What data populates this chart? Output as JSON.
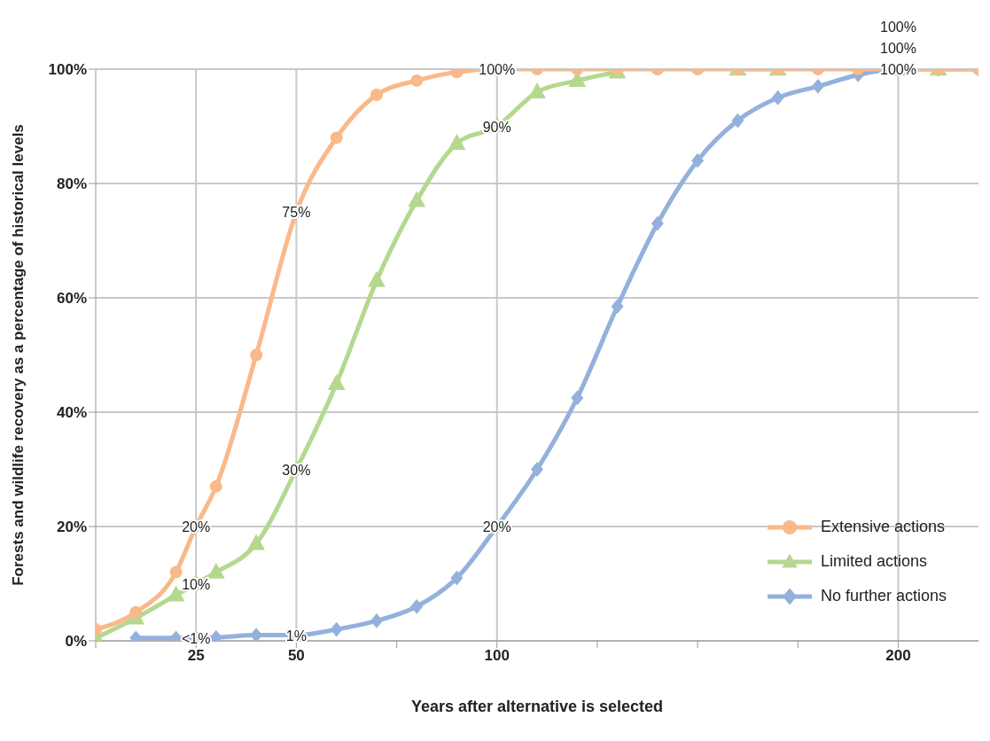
{
  "chart_data": {
    "type": "line",
    "xlabel": "Years after alternative is selected",
    "ylabel": "Forests and wildlife recovery as a percentage of historical levels",
    "x": [
      0,
      10,
      20,
      25,
      30,
      40,
      50,
      60,
      70,
      80,
      90,
      100,
      110,
      120,
      130,
      140,
      150,
      160,
      170,
      180,
      190,
      200,
      210,
      220
    ],
    "series": [
      {
        "name": "Extensive actions",
        "color": "#f9b98a",
        "marker": "circle",
        "values": [
          2,
          5,
          12,
          20,
          27,
          50,
          75,
          88,
          95.5,
          98,
          99.5,
          100,
          100,
          100,
          100,
          100,
          100,
          100,
          100,
          100,
          100,
          100,
          100,
          100
        ],
        "value_labels": [
          null,
          null,
          null,
          "20%",
          null,
          null,
          "75%",
          null,
          null,
          null,
          null,
          "100%",
          null,
          null,
          null,
          null,
          null,
          null,
          null,
          null,
          null,
          "100%",
          null,
          null
        ]
      },
      {
        "name": "Limited actions",
        "color": "#b5d88f",
        "marker": "triangle",
        "values": [
          0.5,
          4,
          8,
          10,
          12,
          17,
          30,
          45,
          63,
          77,
          87,
          90,
          96,
          98,
          99.5,
          null,
          null,
          100,
          100,
          null,
          null,
          100,
          100,
          null
        ],
        "value_labels": [
          null,
          null,
          null,
          "10%",
          null,
          null,
          "30%",
          null,
          null,
          null,
          null,
          "90%",
          null,
          null,
          null,
          null,
          null,
          null,
          null,
          null,
          null,
          "100%",
          null,
          null
        ]
      },
      {
        "name": "No further actions",
        "color": "#93b1dc",
        "marker": "diamond",
        "values": [
          null,
          0.5,
          0.5,
          0.5,
          0.6,
          1,
          1,
          2,
          3.5,
          6,
          11,
          20,
          30,
          42.5,
          58.5,
          73,
          84,
          91,
          95,
          97,
          99,
          100,
          100,
          100
        ],
        "value_labels": [
          null,
          null,
          null,
          "<1%",
          null,
          null,
          "1%",
          null,
          null,
          null,
          null,
          "20%",
          null,
          null,
          null,
          null,
          null,
          null,
          null,
          null,
          null,
          "100%",
          null,
          null
        ]
      }
    ],
    "xlim": [
      0,
      220
    ],
    "xticks": [
      {
        "value": 0,
        "label": null
      },
      {
        "value": 25,
        "label": "25"
      },
      {
        "value": 50,
        "label": "50"
      },
      {
        "value": 75,
        "label": null
      },
      {
        "value": 100,
        "label": "100"
      },
      {
        "value": 125,
        "label": null
      },
      {
        "value": 150,
        "label": null
      },
      {
        "value": 175,
        "label": null
      },
      {
        "value": 200,
        "label": "200"
      }
    ],
    "ylim": [
      0,
      100
    ],
    "yticks": [
      {
        "value": 0,
        "label": "0%"
      },
      {
        "value": 20,
        "label": "20%"
      },
      {
        "value": 40,
        "label": "40%"
      },
      {
        "value": 60,
        "label": "60%"
      },
      {
        "value": 80,
        "label": "80%"
      },
      {
        "value": 100,
        "label": "100%"
      }
    ],
    "grid": true,
    "legend": "bottom right",
    "line_style": "solid"
  }
}
